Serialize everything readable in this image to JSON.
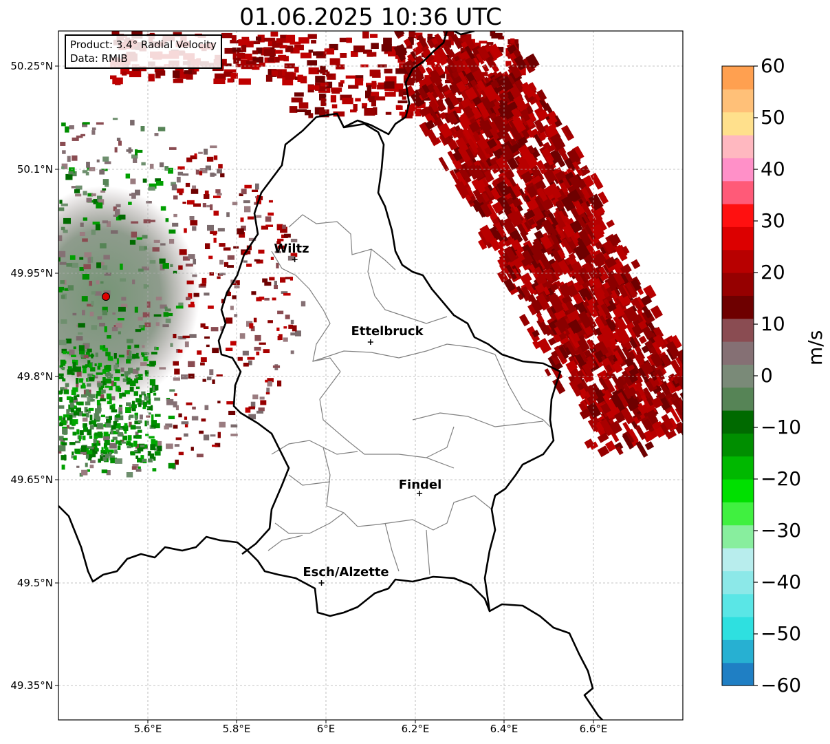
{
  "title": "01.06.2025 10:36 UTC",
  "info": {
    "product_line": "Product: 3.4° Radial Velocity",
    "data_line": "Data: RMIB"
  },
  "map": {
    "lat_ticks": [
      "50.25°N",
      "50.1°N",
      "49.95°N",
      "49.8°N",
      "49.65°N",
      "49.5°N",
      "49.35°N"
    ],
    "lon_ticks": [
      "5.6°E",
      "5.8°E",
      "6°E",
      "6.2°E",
      "6.4°E",
      "6.6°E"
    ],
    "radar_site_color": "#e00000",
    "cities": [
      {
        "name": "Wiltz",
        "lon": 5.93,
        "lat": 49.97
      },
      {
        "name": "Ettelbruck",
        "lon": 6.1,
        "lat": 49.85
      },
      {
        "name": "Findel",
        "lon": 6.21,
        "lat": 49.63
      },
      {
        "name": "Esch/Alzette",
        "lon": 5.99,
        "lat": 49.5
      }
    ]
  },
  "colorbar": {
    "unit": "m/s",
    "ticks": [
      "60",
      "50",
      "40",
      "30",
      "20",
      "10",
      "0",
      "−10",
      "−20",
      "−30",
      "−40",
      "−50",
      "−60"
    ],
    "range": [
      -60,
      60
    ],
    "colors_low_to_high": [
      "#1f7fc4",
      "#27b0d2",
      "#2ee0e0",
      "#5ae6e6",
      "#8ce8e8",
      "#b8eded",
      "#88ee9e",
      "#40f040",
      "#00e000",
      "#00b800",
      "#008e00",
      "#006a00",
      "#568456",
      "#7a8a78",
      "#857074",
      "#8a4c52",
      "#6e0000",
      "#960000",
      "#b80000",
      "#dc0000",
      "#ff1010",
      "#ff5a78",
      "#ff90c8",
      "#ffb8c0",
      "#ffe08c",
      "#ffc078",
      "#ffa050"
    ]
  }
}
